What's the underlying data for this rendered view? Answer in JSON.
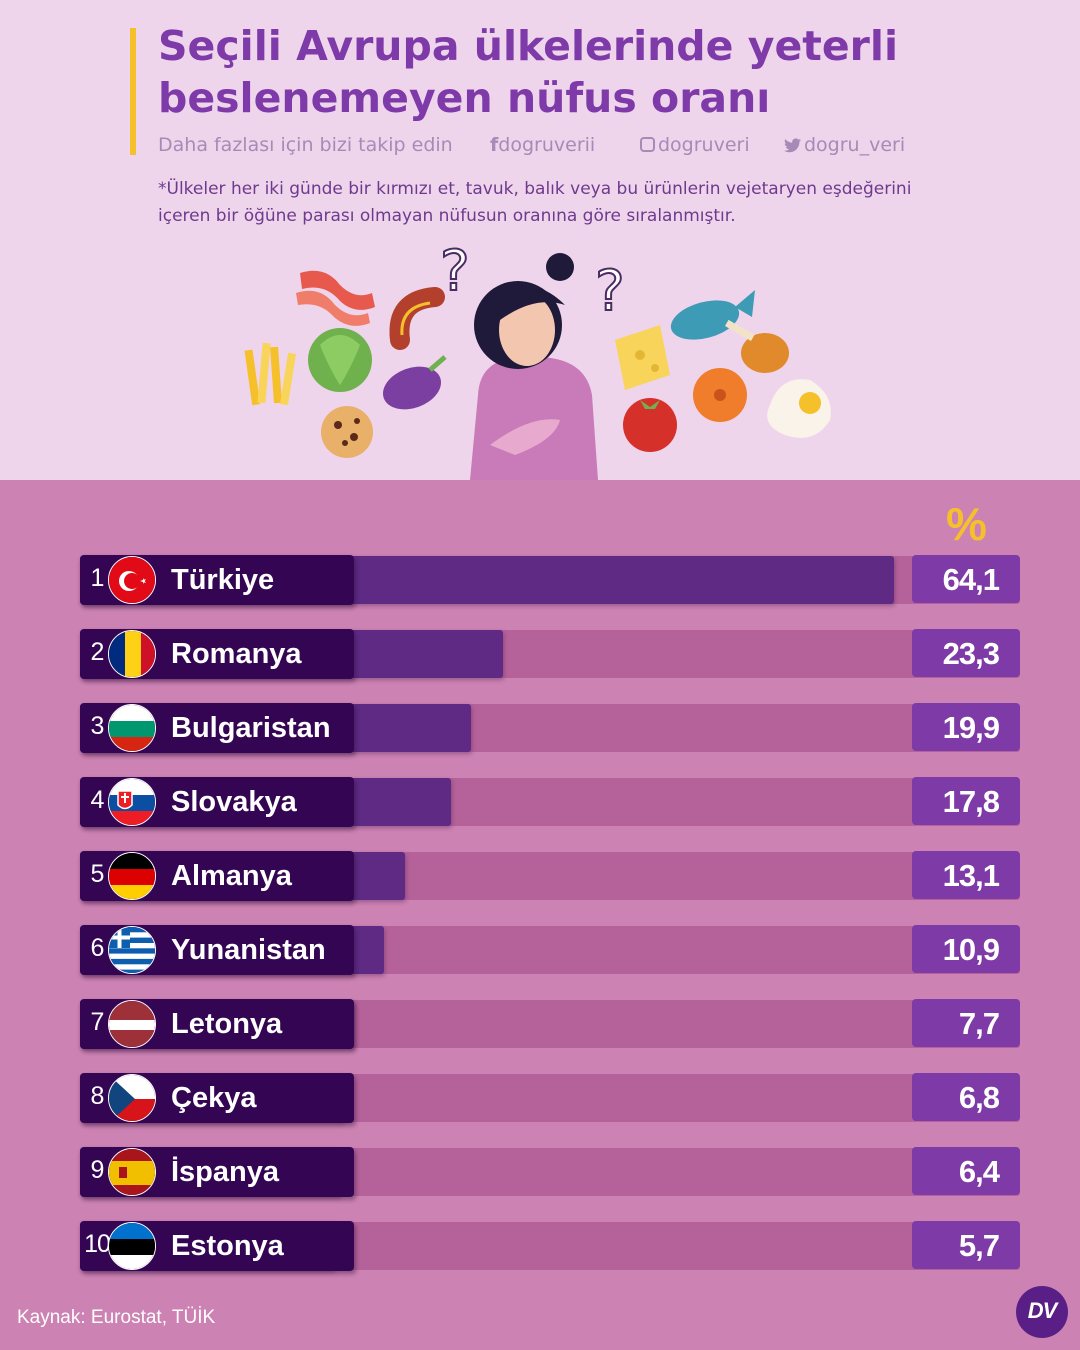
{
  "header": {
    "title_line1": "Seçili Avrupa ülkelerinde yeterli",
    "title_line2": "beslenemeyen nüfus oranı",
    "follow_text": "Daha fazlası için bizi takip edin",
    "social": [
      {
        "icon": "facebook-icon",
        "handle": "dogruverii"
      },
      {
        "icon": "instagram-icon",
        "handle": "dogruveri"
      },
      {
        "icon": "twitter-icon",
        "handle": "dogru_veri"
      }
    ],
    "note_line1": "*Ülkeler her iki günde bir kırmızı et, tavuk, balık veya bu ürünlerin vejetaryen eşdeğerini",
    "note_line2": "içeren bir öğüne parası olmayan nüfusun oranına göre sıralanmıştır."
  },
  "colors": {
    "accent": "#f5c02a",
    "title": "#7d3aa8",
    "bar": "#5e2a84",
    "label_bg": "#340553",
    "value_bg": "#7e3aa6",
    "track": "#b6629a",
    "page_bottom": "#cc82b3",
    "page_top": "#efd5ec"
  },
  "chart_data": {
    "type": "bar",
    "orientation": "horizontal",
    "unit_label": "%",
    "categories": [
      "Türkiye",
      "Romanya",
      "Bulgaristan",
      "Slovakya",
      "Almanya",
      "Yunanistan",
      "Letonya",
      "Çekya",
      "İspanya",
      "Estonya"
    ],
    "ranks": [
      "1",
      "2",
      "3",
      "4",
      "5",
      "6",
      "7",
      "8",
      "9",
      "10"
    ],
    "values": [
      64.1,
      23.3,
      19.9,
      17.8,
      13.1,
      10.9,
      7.7,
      6.8,
      6.4,
      5.7
    ],
    "value_labels": [
      "64,1",
      "23,3",
      "19,9",
      "17,8",
      "13,1",
      "10,9",
      "7,7",
      "6,8",
      "6,4",
      "5,7"
    ],
    "flags": [
      "turkey-flag-icon",
      "romania-flag-icon",
      "bulgaria-flag-icon",
      "slovakia-flag-icon",
      "germany-flag-icon",
      "greece-flag-icon",
      "latvia-flag-icon",
      "czechia-flag-icon",
      "spain-flag-icon",
      "estonia-flag-icon"
    ]
  },
  "footer": {
    "source": "Kaynak: Eurostat, TÜİK",
    "logo_text": "DV"
  }
}
